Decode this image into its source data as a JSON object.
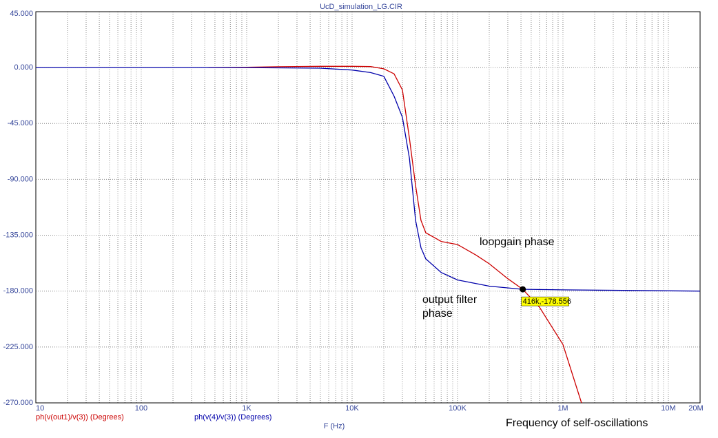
{
  "chart_data": {
    "type": "line",
    "title": "UcD_simulation_LG.CIR",
    "xlabel": "F (Hz)",
    "xscale": "log",
    "xlim": [
      10,
      20000000
    ],
    "ylim": [
      -270,
      45
    ],
    "xticks": [
      {
        "value": 10,
        "label": "10"
      },
      {
        "value": 100,
        "label": "100"
      },
      {
        "value": 1000,
        "label": "1K"
      },
      {
        "value": 10000,
        "label": "10K"
      },
      {
        "value": 100000,
        "label": "100K"
      },
      {
        "value": 1000000,
        "label": "1M"
      },
      {
        "value": 10000000,
        "label": "10M"
      },
      {
        "value": 20000000,
        "label": "20M"
      }
    ],
    "xminorticks": [
      20,
      30,
      40,
      50,
      60,
      70,
      80,
      90,
      200,
      300,
      400,
      500,
      600,
      700,
      800,
      900,
      2000,
      3000,
      4000,
      5000,
      6000,
      7000,
      8000,
      9000,
      20000,
      30000,
      40000,
      50000,
      60000,
      70000,
      80000,
      90000,
      200000,
      300000,
      400000,
      500000,
      600000,
      700000,
      800000,
      900000,
      2000000,
      3000000,
      4000000,
      5000000,
      6000000,
      7000000,
      8000000,
      9000000
    ],
    "yticks": [
      {
        "value": 45,
        "label": "45.000"
      },
      {
        "value": 0,
        "label": "0.000"
      },
      {
        "value": -45,
        "label": "-45.000"
      },
      {
        "value": -90,
        "label": "-90.000"
      },
      {
        "value": -135,
        "label": "-135.000"
      },
      {
        "value": -180,
        "label": "-180.000"
      },
      {
        "value": -225,
        "label": "-225.000"
      },
      {
        "value": -270,
        "label": "-270.000"
      }
    ],
    "grid": true,
    "series": [
      {
        "name": "ph(v(out1)/v(3)) (Degrees)",
        "color": "#cc0000",
        "x": [
          433,
          1000,
          2000,
          5000,
          10000,
          15000,
          20000,
          25000,
          30000,
          35000,
          40000,
          45000,
          50000,
          70000,
          100000,
          150000,
          200000,
          300000,
          416000,
          600000,
          1000000,
          1500000
        ],
        "values": [
          0,
          0.3,
          0.7,
          1,
          1,
          0.8,
          -1,
          -5,
          -18,
          -57,
          -95,
          -123,
          -133,
          -140,
          -142.5,
          -151,
          -158,
          -170,
          -178.556,
          -193,
          -223,
          -270
        ]
      },
      {
        "name": "ph(v(4)/v(3)) (Degrees)",
        "color": "#0000aa",
        "x": [
          10,
          1000,
          5000,
          10000,
          15000,
          20000,
          25000,
          30000,
          35000,
          40000,
          45000,
          50000,
          70000,
          100000,
          200000,
          416000,
          1000000,
          20000000
        ],
        "values": [
          0,
          0,
          -0.5,
          -2,
          -4,
          -7,
          -23,
          -40,
          -73,
          -123,
          -145,
          -154,
          -165,
          -171,
          -176,
          -178.556,
          -179,
          -180
        ]
      }
    ],
    "marker": {
      "x": 416000,
      "y": -178.556,
      "label": "416k,-178.556"
    },
    "annotations": [
      "loopgain phase",
      "output filter",
      "phase",
      "Frequency of self-oscillations"
    ]
  }
}
